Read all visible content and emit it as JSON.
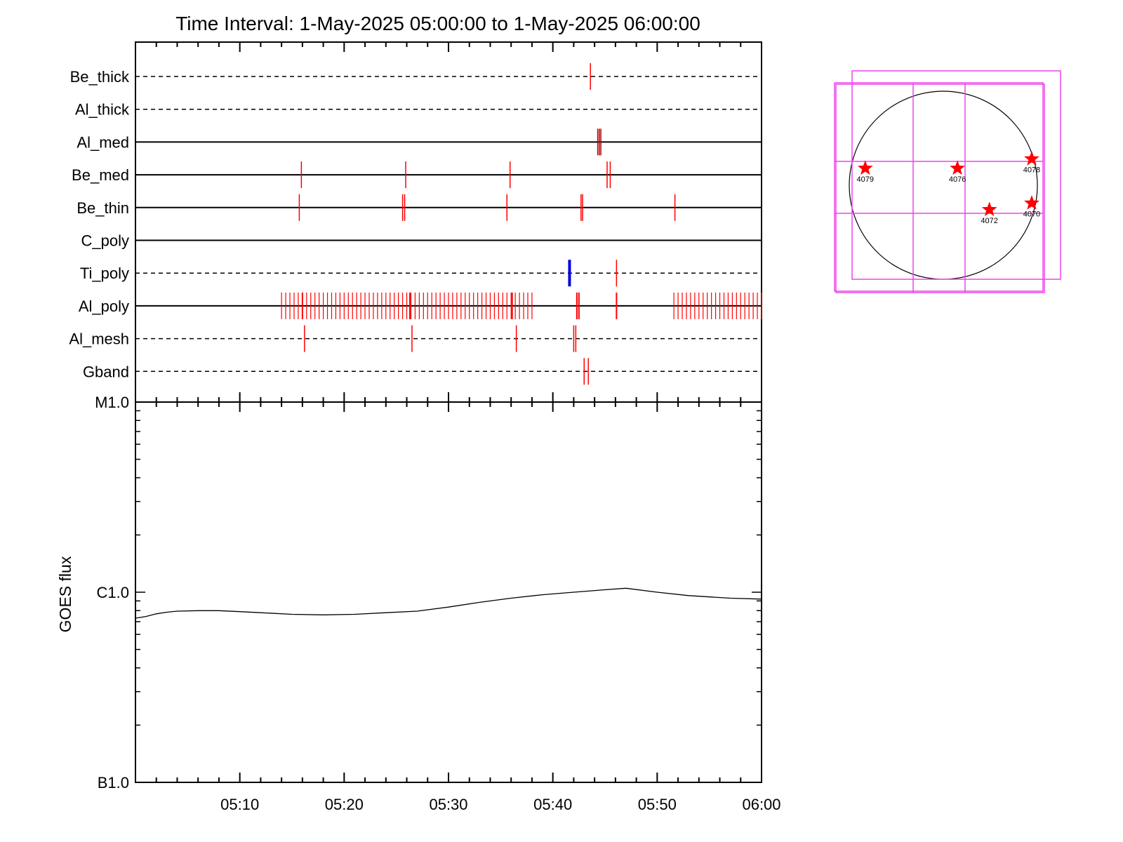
{
  "chart_data": [
    {
      "type": "timeline",
      "title": "Time Interval:  1-May-2025 05:00:00 to  1-May-2025 06:00:00",
      "x_start": "05:00",
      "x_end": "06:00",
      "x_ticks": [
        "05:10",
        "05:20",
        "05:30",
        "05:40",
        "05:50",
        "06:00"
      ],
      "rows": [
        {
          "name": "Be_thick",
          "dashed": true,
          "events": [
            {
              "t": 43.6,
              "color": "red"
            }
          ]
        },
        {
          "name": "Al_thick",
          "dashed": true,
          "events": []
        },
        {
          "name": "Al_med",
          "dashed": false,
          "events": [
            {
              "t": 44.3,
              "color": "darkred"
            },
            {
              "t": 44.45,
              "color": "darkred"
            },
            {
              "t": 44.6,
              "color": "darkred"
            }
          ]
        },
        {
          "name": "Be_med",
          "dashed": false,
          "events": [
            {
              "t": 15.9,
              "color": "red"
            },
            {
              "t": 25.9,
              "color": "red"
            },
            {
              "t": 35.9,
              "color": "red"
            },
            {
              "t": 45.2,
              "color": "red"
            },
            {
              "t": 45.5,
              "color": "red"
            }
          ]
        },
        {
          "name": "Be_thin",
          "dashed": false,
          "events": [
            {
              "t": 15.7,
              "color": "red"
            },
            {
              "t": 25.6,
              "color": "red"
            },
            {
              "t": 25.8,
              "color": "red"
            },
            {
              "t": 35.6,
              "color": "red"
            },
            {
              "t": 42.7,
              "color": "red"
            },
            {
              "t": 42.85,
              "color": "red"
            },
            {
              "t": 51.7,
              "color": "red"
            }
          ]
        },
        {
          "name": "C_poly",
          "dashed": false,
          "events": []
        },
        {
          "name": "Ti_poly",
          "dashed": true,
          "events": [
            {
              "t": 41.6,
              "color": "blue",
              "bold": true
            },
            {
              "t": 46.1,
              "color": "red"
            }
          ]
        },
        {
          "name": "Al_poly",
          "dashed": false,
          "events": [],
          "dense_ranges": [
            [
              14.0,
              38.3,
              0.4
            ],
            [
              51.6,
              60.0,
              0.4
            ]
          ],
          "extra": [
            16.0,
            26.3,
            36.1,
            42.3,
            42.5,
            46.1
          ]
        },
        {
          "name": "Al_mesh",
          "dashed": true,
          "events": [
            {
              "t": 16.2,
              "color": "red"
            },
            {
              "t": 26.5,
              "color": "red"
            },
            {
              "t": 36.5,
              "color": "red"
            },
            {
              "t": 42.0,
              "color": "red"
            },
            {
              "t": 42.2,
              "color": "red"
            }
          ]
        },
        {
          "name": "Gband",
          "dashed": true,
          "events": [
            {
              "t": 43.0,
              "color": "red"
            },
            {
              "t": 43.4,
              "color": "red"
            }
          ]
        }
      ]
    },
    {
      "type": "line",
      "ylabel": "GOES flux",
      "y_scale": "log",
      "y_ticks": [
        "M1.0",
        "C1.0",
        "B1.0"
      ],
      "ylim": [
        1e-07,
        1e-05
      ],
      "x_minutes": [
        0,
        1,
        2,
        3,
        4,
        6,
        8,
        10,
        12,
        15,
        18,
        21,
        24,
        27,
        30,
        33,
        36,
        39,
        42,
        45,
        47,
        50,
        53,
        57,
        60
      ],
      "flux": [
        7.3e-07,
        7.45e-07,
        7.7e-07,
        7.85e-07,
        7.95e-07,
        8e-07,
        8e-07,
        7.9e-07,
        7.8e-07,
        7.65e-07,
        7.6e-07,
        7.65e-07,
        7.8e-07,
        7.95e-07,
        8.35e-07,
        8.85e-07,
        9.3e-07,
        9.7e-07,
        1e-06,
        1.03e-06,
        1.05e-06,
        1e-06,
        9.6e-07,
        9.3e-07,
        9.2e-07
      ]
    },
    {
      "type": "map",
      "regions": [
        {
          "label": "4079",
          "x": -0.83,
          "y": 0.18
        },
        {
          "label": "4076",
          "x": 0.15,
          "y": 0.18
        },
        {
          "label": "4078",
          "x": 0.94,
          "y": 0.28
        },
        {
          "label": "4072",
          "x": 0.49,
          "y": -0.26
        },
        {
          "label": "4070",
          "x": 0.94,
          "y": -0.19
        }
      ]
    }
  ]
}
